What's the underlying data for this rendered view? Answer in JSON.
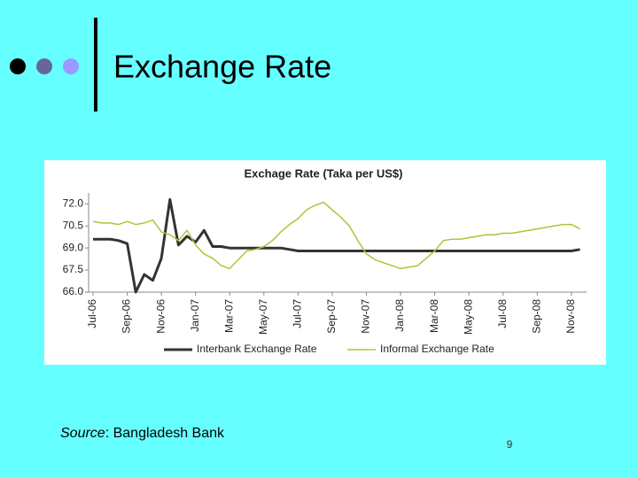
{
  "slide": {
    "title": "Exchange Rate",
    "source_label": "Source",
    "source_text": ": Bangladesh Bank",
    "page_number": "9"
  },
  "chart_data": {
    "type": "line",
    "title": "Exchage Rate (Taka per US$)",
    "categories": [
      "Jul-06",
      null,
      null,
      null,
      "Sep-06",
      null,
      null,
      null,
      "Nov-06",
      null,
      null,
      null,
      "Jan-07",
      null,
      null,
      null,
      "Mar-07",
      null,
      null,
      null,
      "May-07",
      null,
      null,
      null,
      "Jul-07",
      null,
      null,
      null,
      "Sep-07",
      null,
      null,
      null,
      "Nov-07",
      null,
      null,
      null,
      "Jan-08",
      null,
      null,
      null,
      "Mar-08",
      null,
      null,
      null,
      "May-08",
      null,
      null,
      null,
      "Jul-08",
      null,
      null,
      null,
      "Sep-08",
      null,
      null,
      null,
      "Nov-08",
      null
    ],
    "series": [
      {
        "name": "Interbank Exchange Rate",
        "color": "#333333",
        "values": [
          69.6,
          69.6,
          69.6,
          69.5,
          69.3,
          66.0,
          67.2,
          66.8,
          68.3,
          72.3,
          69.2,
          69.8,
          69.4,
          70.2,
          69.1,
          69.1,
          69.0,
          69.0,
          69.0,
          69.0,
          69.0,
          69.0,
          69.0,
          68.9,
          68.8,
          68.8,
          68.8,
          68.8,
          68.8,
          68.8,
          68.8,
          68.8,
          68.8,
          68.8,
          68.8,
          68.8,
          68.8,
          68.8,
          68.8,
          68.8,
          68.8,
          68.8,
          68.8,
          68.8,
          68.8,
          68.8,
          68.8,
          68.8,
          68.8,
          68.8,
          68.8,
          68.8,
          68.8,
          68.8,
          68.8,
          68.8,
          68.8,
          68.9
        ]
      },
      {
        "name": "Informal Exchange Rate",
        "color": "#a8c838",
        "values": [
          70.8,
          70.7,
          70.7,
          70.6,
          70.8,
          70.6,
          70.7,
          70.9,
          70.1,
          69.9,
          69.5,
          70.2,
          69.2,
          68.6,
          68.3,
          67.8,
          67.6,
          68.2,
          68.8,
          68.9,
          69.1,
          69.5,
          70.1,
          70.6,
          71.0,
          71.6,
          71.9,
          72.1,
          71.6,
          71.1,
          70.5,
          69.5,
          68.6,
          68.2,
          68.0,
          67.8,
          67.6,
          67.7,
          67.8,
          68.3,
          68.8,
          69.5,
          69.6,
          69.6,
          69.7,
          69.8,
          69.9,
          69.9,
          70.0,
          70.0,
          70.1,
          70.2,
          70.3,
          70.4,
          70.5,
          70.6,
          70.6,
          70.3
        ]
      }
    ],
    "ylim": [
      66,
      72.5
    ],
    "yticks": [
      {
        "value": 66,
        "label": "66.0"
      },
      {
        "value": 67.5,
        "label": "67.5"
      },
      {
        "value": 69,
        "label": "69.0"
      },
      {
        "value": 70.5,
        "label": "70.5"
      },
      {
        "value": 72,
        "label": "72.0"
      }
    ],
    "grid": false,
    "legend": "bottom"
  }
}
